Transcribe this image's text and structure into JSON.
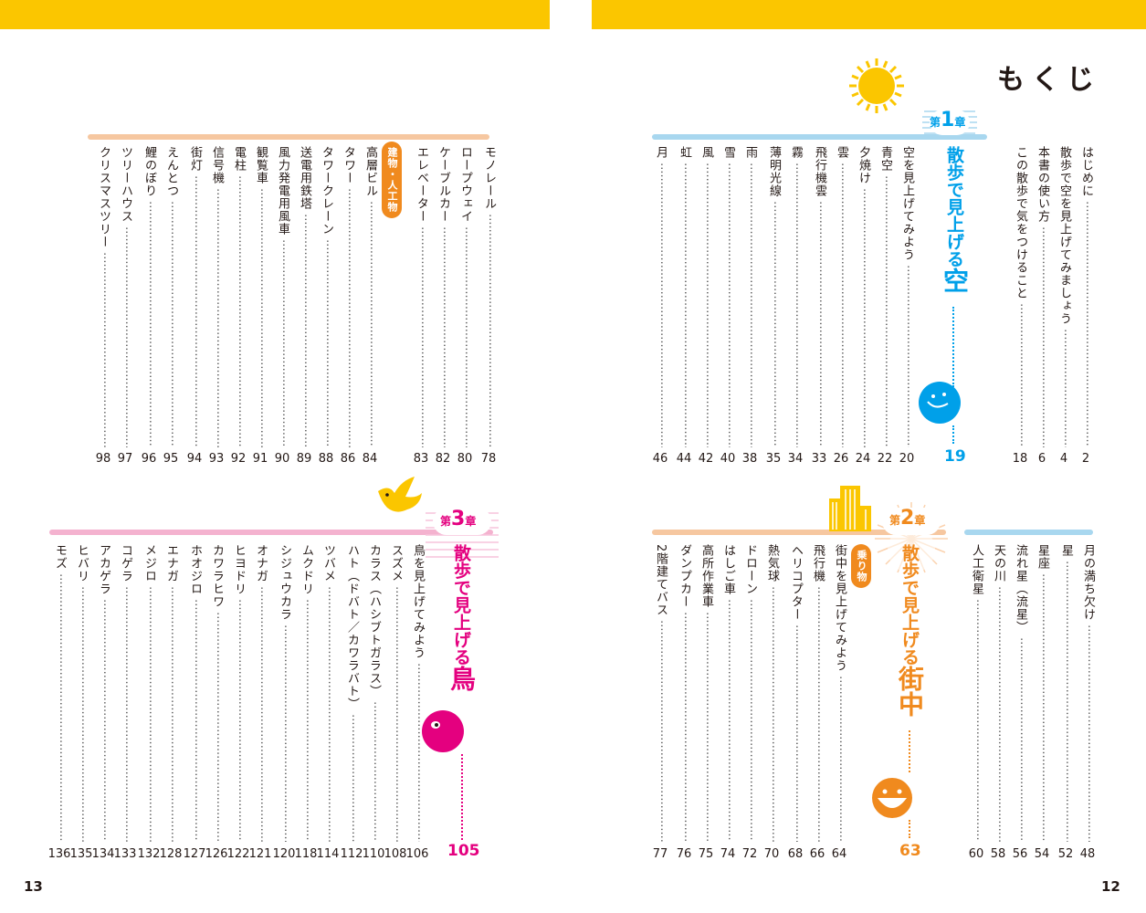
{
  "pages": {
    "left_num": "13",
    "right_num": "12"
  },
  "title": "もくじ",
  "colors": {
    "yellow": "#fbc600",
    "sky": "#a8d7ef",
    "sky_dark": "#00a0e9",
    "orange_line": "#f6c7a0",
    "orange": "#f08a1e",
    "pink_line": "#f4b2cf",
    "pink": "#e4007f",
    "badge_orange": "#f08a1e"
  },
  "intro": [
    {
      "text": "はじめに",
      "page": "2"
    },
    {
      "text": "散歩で空を見上げてみましょう",
      "page": "4"
    },
    {
      "text": "本書の使い方",
      "page": "6"
    },
    {
      "text": "この散歩で気をつけること",
      "page": "18"
    }
  ],
  "ch1": {
    "label_pre": "第",
    "label_num": "1",
    "label_post": "章",
    "title_a": "散歩で見上げる",
    "title_b": "空",
    "page": "19",
    "items": [
      {
        "text": "空を見上げてみよう",
        "page": "20"
      },
      {
        "text": "青空",
        "page": "22"
      },
      {
        "text": "夕焼け",
        "page": "24"
      },
      {
        "text": "雲",
        "page": "26"
      },
      {
        "text": "飛行機雲",
        "page": "33"
      },
      {
        "text": "霧",
        "page": "34"
      },
      {
        "text": "薄明光線",
        "page": "35"
      },
      {
        "text": "雨",
        "page": "38"
      },
      {
        "text": "雪",
        "page": "40"
      },
      {
        "text": "風",
        "page": "42"
      },
      {
        "text": "虹",
        "page": "44"
      },
      {
        "text": "月",
        "page": "46"
      }
    ]
  },
  "ch1b": {
    "items": [
      {
        "text": "月の満ち欠け",
        "page": "48"
      },
      {
        "text": "星",
        "page": "52"
      },
      {
        "text": "星座",
        "page": "54"
      },
      {
        "text": "流れ星（流星）",
        "page": "56"
      },
      {
        "text": "天の川",
        "page": "58"
      },
      {
        "text": "人工衛星",
        "page": "60"
      }
    ]
  },
  "ch2": {
    "label_pre": "第",
    "label_num": "2",
    "label_post": "章",
    "title_a": "散歩で見上げる",
    "title_b": "街中",
    "page": "63",
    "items": [
      {
        "text": "街中を見上げてみよう",
        "page": "64"
      },
      {
        "text": "飛行機",
        "page": "66"
      },
      {
        "text": "ヘリコプター",
        "page": "68"
      },
      {
        "text": "熱気球",
        "page": "70"
      },
      {
        "text": "ドローン",
        "page": "72"
      },
      {
        "text": "はしご車",
        "page": "74"
      },
      {
        "text": "高所作業車",
        "page": "75"
      },
      {
        "text": "ダンプカー",
        "page": "76"
      },
      {
        "text": "2階建てバス",
        "page": "77"
      }
    ],
    "badge": "乗り物"
  },
  "ch2b": {
    "badge": "建物・人工物",
    "items": [
      {
        "text": "モノレール",
        "page": "78"
      },
      {
        "text": "ロープウェイ",
        "page": "80"
      },
      {
        "text": "ケーブルカー",
        "page": "82"
      },
      {
        "text": "エレベーター",
        "page": "83"
      },
      {
        "text": "高層ビル",
        "page": "84"
      },
      {
        "text": "タワー",
        "page": "86"
      },
      {
        "text": "タワークレーン",
        "page": "88"
      },
      {
        "text": "送電用鉄塔",
        "page": "89"
      },
      {
        "text": "風力発電用風車",
        "page": "90"
      },
      {
        "text": "観覧車",
        "page": "91"
      },
      {
        "text": "電柱",
        "page": "92"
      },
      {
        "text": "信号機",
        "page": "93"
      },
      {
        "text": "街灯",
        "page": "94"
      },
      {
        "text": "えんとつ",
        "page": "95"
      },
      {
        "text": "鯉のぼり",
        "page": "96"
      },
      {
        "text": "ツリーハウス",
        "page": "97"
      },
      {
        "text": "クリスマスツリー",
        "page": "98"
      }
    ]
  },
  "ch3": {
    "label_pre": "第",
    "label_num": "3",
    "label_post": "章",
    "title_a": "散歩で見上げる",
    "title_b": "鳥",
    "page": "105",
    "items": [
      {
        "text": "鳥を見上げてみよう",
        "page": "106"
      },
      {
        "text": "スズメ",
        "page": "108"
      },
      {
        "text": "カラス（ハシブトガラス）",
        "page": "110"
      },
      {
        "text": "ハト（ドバト／カワラバト）",
        "page": "112"
      },
      {
        "text": "ツバメ",
        "page": "114"
      },
      {
        "text": "ムクドリ",
        "page": "118"
      },
      {
        "text": "シジュウカラ",
        "page": "120"
      },
      {
        "text": "オナガ",
        "page": "121"
      },
      {
        "text": "ヒヨドリ",
        "page": "122"
      },
      {
        "text": "カワラヒワ",
        "page": "126"
      },
      {
        "text": "ホオジロ",
        "page": "127"
      },
      {
        "text": "エナガ",
        "page": "128"
      },
      {
        "text": "メジロ",
        "page": "132"
      },
      {
        "text": "コゲラ",
        "page": "133"
      },
      {
        "text": "アカゲラ",
        "page": "134"
      },
      {
        "text": "ヒバリ",
        "page": "135"
      },
      {
        "text": "モズ",
        "page": "136"
      }
    ]
  }
}
